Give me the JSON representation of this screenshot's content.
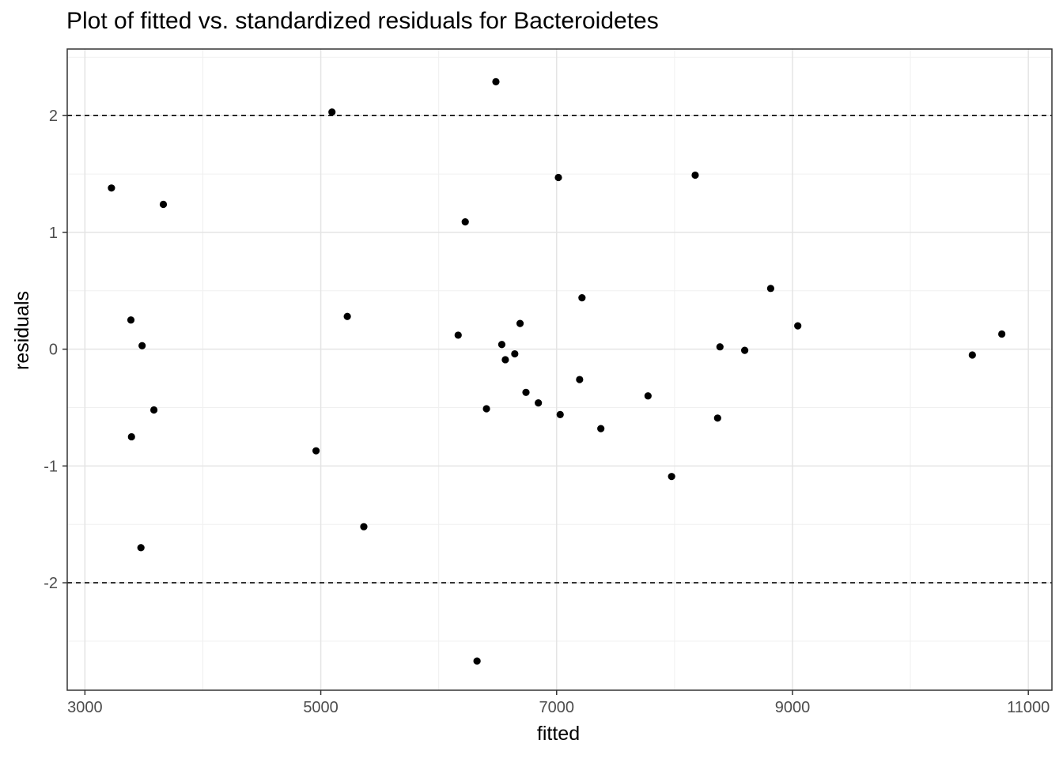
{
  "chart_data": {
    "type": "scatter",
    "title": "Plot of fitted vs. standardized residuals for Bacteroidetes",
    "xlabel": "fitted",
    "ylabel": "residuals",
    "xlim": [
      2850,
      11200
    ],
    "ylim": [
      -2.92,
      2.57
    ],
    "x_ticks": [
      3000,
      5000,
      7000,
      9000,
      11000
    ],
    "x_tick_labels": [
      "3000",
      "5000",
      "7000",
      "9000",
      "11000"
    ],
    "y_ticks": [
      -2,
      -1,
      0,
      1,
      2
    ],
    "y_tick_labels": [
      "-2",
      "-1",
      "0",
      "1",
      "2"
    ],
    "grid": true,
    "reference_lines": [
      2,
      -2
    ],
    "points": [
      {
        "x": 3225,
        "y": 1.38
      },
      {
        "x": 3390,
        "y": 0.25
      },
      {
        "x": 3395,
        "y": -0.75
      },
      {
        "x": 3475,
        "y": -1.7
      },
      {
        "x": 3485,
        "y": 0.03
      },
      {
        "x": 3585,
        "y": -0.52
      },
      {
        "x": 3665,
        "y": 1.24
      },
      {
        "x": 4960,
        "y": -0.87
      },
      {
        "x": 5095,
        "y": 2.03
      },
      {
        "x": 5225,
        "y": 0.28
      },
      {
        "x": 5365,
        "y": -1.52
      },
      {
        "x": 6165,
        "y": 0.12
      },
      {
        "x": 6225,
        "y": 1.09
      },
      {
        "x": 6325,
        "y": -2.67
      },
      {
        "x": 6405,
        "y": -0.51
      },
      {
        "x": 6485,
        "y": 2.29
      },
      {
        "x": 6535,
        "y": 0.04
      },
      {
        "x": 6565,
        "y": -0.09
      },
      {
        "x": 6645,
        "y": -0.04
      },
      {
        "x": 6690,
        "y": 0.22
      },
      {
        "x": 6740,
        "y": -0.37
      },
      {
        "x": 6845,
        "y": -0.46
      },
      {
        "x": 7015,
        "y": 1.47
      },
      {
        "x": 7030,
        "y": -0.56
      },
      {
        "x": 7195,
        "y": -0.26
      },
      {
        "x": 7215,
        "y": 0.44
      },
      {
        "x": 7375,
        "y": -0.68
      },
      {
        "x": 7775,
        "y": -0.4
      },
      {
        "x": 7975,
        "y": -1.09
      },
      {
        "x": 8175,
        "y": 1.49
      },
      {
        "x": 8365,
        "y": -0.59
      },
      {
        "x": 8385,
        "y": 0.02
      },
      {
        "x": 8595,
        "y": -0.01
      },
      {
        "x": 8815,
        "y": 0.52
      },
      {
        "x": 9045,
        "y": 0.2
      },
      {
        "x": 10525,
        "y": -0.05
      },
      {
        "x": 10775,
        "y": 0.13
      }
    ]
  }
}
